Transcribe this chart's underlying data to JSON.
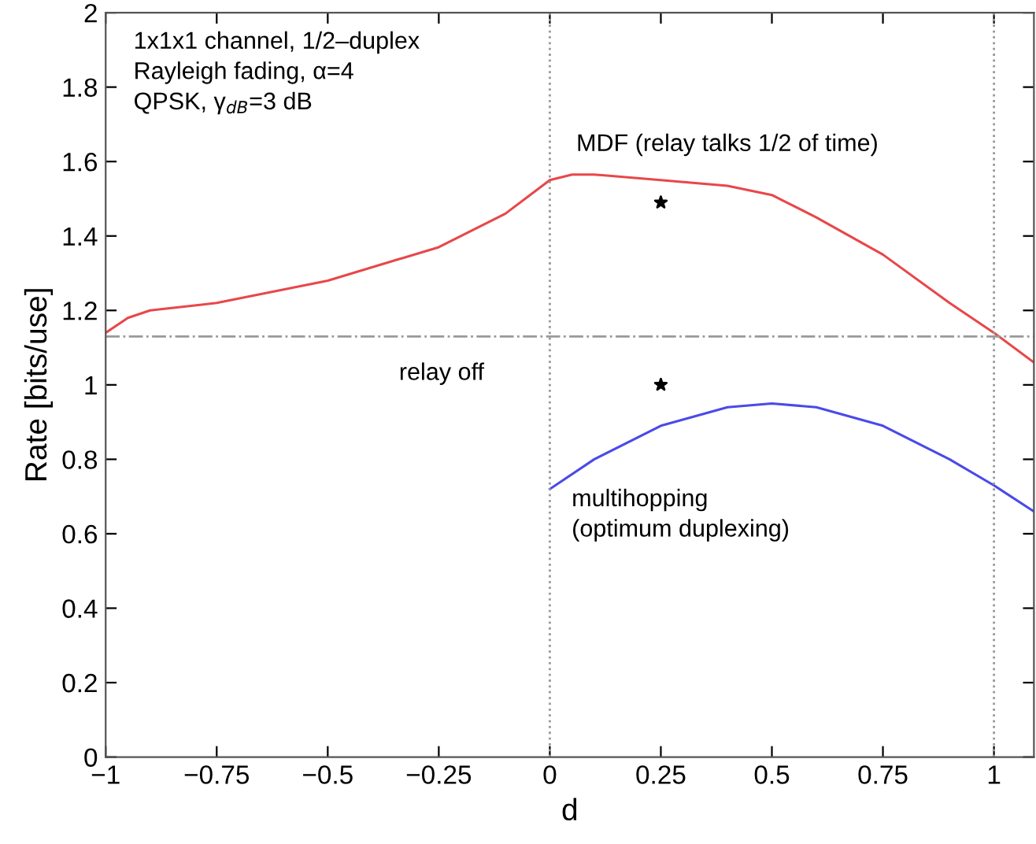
{
  "chart_data": {
    "type": "line",
    "xlabel": "d",
    "ylabel": "Rate [bits/use]",
    "xlim": [
      -1,
      1.09
    ],
    "ylim": [
      0,
      2
    ],
    "xticks": [
      {
        "value": -1,
        "label": "−1"
      },
      {
        "value": -0.75,
        "label": "−0.75"
      },
      {
        "value": -0.5,
        "label": "−0.5"
      },
      {
        "value": -0.25,
        "label": "−0.25"
      },
      0,
      0.25,
      0.5,
      0.75,
      1
    ],
    "yticks": [
      0,
      0.2,
      0.4,
      0.6,
      0.8,
      1,
      1.2,
      1.4,
      1.6,
      1.8,
      2
    ],
    "grid": false,
    "marker": "none",
    "line_style": "solid",
    "series": [
      {
        "color": "#e8474a",
        "x": [
          -1,
          -0.95,
          -0.9,
          -0.75,
          -0.5,
          -0.25,
          -0.1,
          0,
          0.05,
          0.1,
          0.25,
          0.4,
          0.5,
          0.6,
          0.75,
          0.9,
          1.0,
          1.09
        ],
        "values": [
          1.14,
          1.18,
          1.2,
          1.22,
          1.28,
          1.37,
          1.46,
          1.55,
          1.565,
          1.565,
          1.55,
          1.535,
          1.51,
          1.45,
          1.35,
          1.22,
          1.14,
          1.06
        ]
      },
      {
        "color": "#4a4ae8",
        "x": [
          0,
          0.1,
          0.25,
          0.4,
          0.5,
          0.6,
          0.75,
          0.9,
          1.0,
          1.09
        ],
        "values": [
          0.72,
          0.8,
          0.89,
          0.94,
          0.95,
          0.94,
          0.89,
          0.8,
          0.73,
          0.66
        ]
      },
      {
        "type": "scatter",
        "marker": "star",
        "color": "#000000",
        "x": [
          0.25,
          0.25
        ],
        "values": [
          1.49,
          1.0
        ]
      }
    ],
    "ref_lines": [
      {
        "axis": "y",
        "value": 1.13,
        "color": "#999999",
        "line_style": "dashdot"
      },
      {
        "axis": "x",
        "value": 0,
        "color": "#999999",
        "line_style": "dotted"
      },
      {
        "axis": "x",
        "value": 1,
        "color": "#999999",
        "line_style": "dotted"
      }
    ],
    "annotations": [
      "1x1x1 channel, 1/2–duplex\nRayleigh fading, α=4\nQPSK, γ$_{dB}$=3 dB",
      "relay off",
      "MDF (relay talks 1/2 of time)",
      "multihopping\n(optimum duplexing)"
    ]
  }
}
